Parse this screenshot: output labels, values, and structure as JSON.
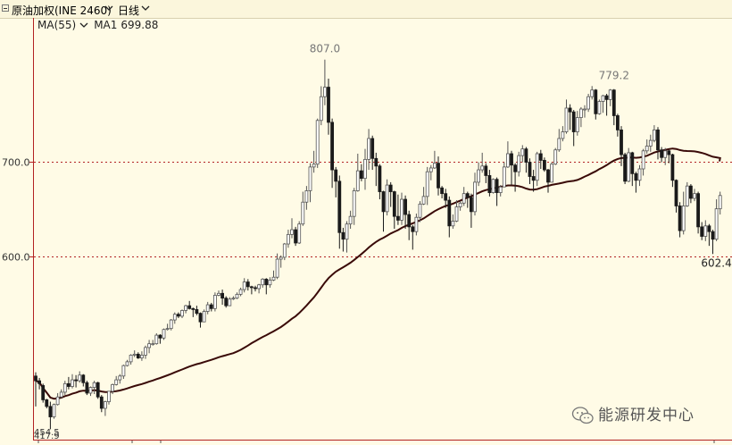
{
  "header": {
    "instrument": "原油加权(INE 2460)",
    "period": "日线"
  },
  "indicator": {
    "selector": "MA(55)",
    "ma1_label": "MA1",
    "ma1_value": "699.88"
  },
  "watermark": "能源研发中心",
  "colors": {
    "background": "#fffbe6",
    "candle_up_border": "#555555",
    "candle_down": "#1a1a1a",
    "ma_line": "#3a0a08",
    "axis": "#b22222"
  },
  "chart_data": {
    "type": "candlestick",
    "ylim": [
      408,
      850
    ],
    "yticks": [
      600.0,
      700.0
    ],
    "ytick_labels": [
      "600.0",
      "700.0"
    ],
    "bottom_labels": [
      "454.5",
      "417.9"
    ],
    "annotations": [
      {
        "text": "807.0",
        "index": 79,
        "price": 807.0,
        "position": "above"
      },
      {
        "text": "779.2",
        "index": 158,
        "price": 779.2,
        "position": "above"
      },
      {
        "text": "602.4",
        "index": 186,
        "price": 602.4,
        "position": "below"
      }
    ],
    "ma_period": 55,
    "ma_last": 699.88,
    "candles": [
      [
        474.0,
        469.0,
        478.0,
        442.0
      ],
      [
        469.0,
        466.0,
        472.0,
        460.0
      ],
      [
        464.0,
        449.0,
        466.0,
        446.0
      ],
      [
        449.0,
        442.0,
        450.0,
        440.0
      ],
      [
        442.0,
        431.0,
        447.0,
        418.0
      ],
      [
        431.0,
        444.0,
        445.0,
        429.0
      ],
      [
        444.0,
        452.0,
        456.0,
        443.0
      ],
      [
        452.0,
        457.0,
        460.0,
        451.0
      ],
      [
        457.0,
        466.0,
        469.0,
        454.0
      ],
      [
        466.0,
        463.0,
        473.0,
        460.0
      ],
      [
        463.0,
        470.0,
        476.0,
        461.0
      ],
      [
        470.0,
        469.0,
        475.0,
        462.0
      ],
      [
        469.0,
        475.0,
        479.0,
        467.0
      ],
      [
        475.0,
        467.0,
        476.0,
        463.0
      ],
      [
        467.0,
        456.0,
        469.0,
        454.0
      ],
      [
        456.0,
        462.0,
        463.0,
        453.0
      ],
      [
        462.0,
        467.0,
        469.0,
        455.0
      ],
      [
        467.0,
        452.0,
        468.0,
        450.0
      ],
      [
        452.0,
        440.0,
        454.0,
        436.0
      ],
      [
        440.0,
        447.0,
        448.0,
        432.0
      ],
      [
        447.0,
        458.0,
        458.0,
        444.0
      ],
      [
        458.0,
        465.0,
        466.0,
        455.0
      ],
      [
        465.0,
        470.0,
        474.0,
        464.0
      ],
      [
        470.0,
        474.0,
        476.0,
        466.0
      ],
      [
        474.0,
        485.0,
        486.0,
        471.0
      ],
      [
        485.0,
        489.0,
        491.0,
        484.0
      ],
      [
        489.0,
        496.0,
        497.0,
        486.0
      ],
      [
        496.0,
        497.0,
        501.0,
        494.0
      ],
      [
        497.0,
        493.0,
        499.0,
        492.0
      ],
      [
        493.0,
        496.0,
        500.0,
        490.0
      ],
      [
        496.0,
        504.0,
        506.0,
        492.0
      ],
      [
        504.0,
        508.0,
        512.0,
        498.0
      ],
      [
        508.0,
        508.0,
        512.0,
        506.0
      ],
      [
        508.0,
        517.0,
        519.0,
        507.0
      ],
      [
        517.0,
        514.0,
        518.0,
        508.0
      ],
      [
        514.0,
        523.0,
        524.0,
        512.0
      ],
      [
        523.0,
        524.0,
        529.0,
        522.0
      ],
      [
        524.0,
        533.0,
        534.0,
        522.0
      ],
      [
        533.0,
        539.0,
        541.0,
        529.0
      ],
      [
        539.0,
        537.0,
        541.0,
        535.0
      ],
      [
        537.0,
        543.0,
        544.0,
        535.0
      ],
      [
        543.0,
        548.0,
        549.0,
        540.0
      ],
      [
        548.0,
        545.0,
        553.0,
        544.0
      ],
      [
        545.0,
        544.0,
        546.0,
        536.0
      ],
      [
        544.0,
        540.0,
        548.0,
        538.0
      ],
      [
        540.0,
        531.0,
        541.0,
        525.0
      ],
      [
        531.0,
        542.0,
        544.0,
        531.0
      ],
      [
        542.0,
        549.0,
        552.0,
        539.0
      ],
      [
        549.0,
        545.0,
        551.0,
        542.0
      ],
      [
        545.0,
        559.0,
        562.0,
        542.0
      ],
      [
        559.0,
        561.0,
        564.0,
        558.0
      ],
      [
        561.0,
        556.0,
        565.0,
        549.0
      ],
      [
        556.0,
        548.0,
        558.0,
        546.0
      ],
      [
        548.0,
        555.0,
        557.0,
        548.0
      ],
      [
        555.0,
        556.0,
        558.0,
        554.0
      ],
      [
        556.0,
        560.0,
        562.0,
        555.0
      ],
      [
        560.0,
        565.0,
        567.0,
        558.0
      ],
      [
        565.0,
        573.0,
        577.0,
        562.0
      ],
      [
        573.0,
        568.0,
        576.0,
        564.0
      ],
      [
        568.0,
        567.0,
        569.0,
        560.0
      ],
      [
        567.0,
        566.0,
        569.0,
        563.0
      ],
      [
        566.0,
        570.0,
        571.0,
        561.0
      ],
      [
        570.0,
        576.0,
        577.0,
        567.0
      ],
      [
        576.0,
        570.0,
        577.0,
        560.0
      ],
      [
        570.0,
        575.0,
        578.0,
        567.0
      ],
      [
        575.0,
        578.0,
        585.0,
        574.0
      ],
      [
        578.0,
        597.0,
        603.0,
        576.0
      ],
      [
        597.0,
        599.0,
        601.0,
        588.0
      ],
      [
        599.0,
        613.0,
        614.0,
        596.0
      ],
      [
        613.0,
        623.0,
        628.0,
        609.0
      ],
      [
        623.0,
        628.0,
        640.0,
        619.0
      ],
      [
        628.0,
        614.0,
        631.0,
        611.0
      ],
      [
        614.0,
        634.0,
        637.0,
        613.0
      ],
      [
        634.0,
        657.0,
        668.0,
        632.0
      ],
      [
        657.0,
        669.0,
        674.0,
        649.0
      ],
      [
        669.0,
        694.0,
        698.0,
        657.0
      ],
      [
        694.0,
        697.0,
        711.0,
        688.0
      ],
      [
        697.0,
        743.0,
        745.0,
        693.0
      ],
      [
        743.0,
        768.0,
        779.0,
        738.0
      ],
      [
        768.0,
        778.0,
        807.0,
        759.0
      ],
      [
        778.0,
        741.0,
        787.0,
        728.0
      ],
      [
        741.0,
        691.0,
        745.0,
        672.0
      ],
      [
        691.0,
        679.0,
        694.0,
        662.0
      ],
      [
        679.0,
        625.0,
        685.0,
        608.0
      ],
      [
        625.0,
        618.0,
        630.0,
        605.0
      ],
      [
        618.0,
        634.0,
        637.0,
        604.0
      ],
      [
        634.0,
        642.0,
        648.0,
        629.0
      ],
      [
        642.0,
        669.0,
        672.0,
        633.0
      ],
      [
        669.0,
        690.0,
        708.0,
        668.0
      ],
      [
        690.0,
        682.0,
        697.0,
        679.0
      ],
      [
        682.0,
        702.0,
        713.0,
        670.0
      ],
      [
        702.0,
        724.0,
        734.0,
        691.0
      ],
      [
        724.0,
        703.0,
        727.0,
        691.0
      ],
      [
        703.0,
        695.0,
        709.0,
        674.0
      ],
      [
        695.0,
        668.0,
        697.0,
        660.0
      ],
      [
        668.0,
        647.0,
        669.0,
        626.0
      ],
      [
        647.0,
        675.0,
        681.0,
        643.0
      ],
      [
        675.0,
        668.0,
        678.0,
        652.0
      ],
      [
        668.0,
        642.0,
        669.0,
        629.0
      ],
      [
        642.0,
        638.0,
        665.0,
        633.0
      ],
      [
        638.0,
        660.0,
        667.0,
        633.0
      ],
      [
        660.0,
        644.0,
        664.0,
        629.0
      ],
      [
        644.0,
        631.0,
        648.0,
        617.0
      ],
      [
        631.0,
        626.0,
        633.0,
        607.0
      ],
      [
        626.0,
        641.0,
        645.0,
        622.0
      ],
      [
        641.0,
        655.0,
        658.0,
        636.0
      ],
      [
        655.0,
        663.0,
        673.0,
        654.0
      ],
      [
        663.0,
        689.0,
        694.0,
        654.0
      ],
      [
        689.0,
        693.0,
        696.0,
        680.0
      ],
      [
        693.0,
        698.0,
        711.0,
        692.0
      ],
      [
        698.0,
        672.0,
        705.0,
        664.0
      ],
      [
        672.0,
        666.0,
        674.0,
        661.0
      ],
      [
        666.0,
        659.0,
        671.0,
        651.0
      ],
      [
        659.0,
        632.0,
        663.0,
        620.0
      ],
      [
        632.0,
        637.0,
        644.0,
        629.0
      ],
      [
        637.0,
        652.0,
        659.0,
        636.0
      ],
      [
        652.0,
        656.0,
        658.0,
        648.0
      ],
      [
        656.0,
        666.0,
        673.0,
        653.0
      ],
      [
        666.0,
        662.0,
        668.0,
        651.0
      ],
      [
        662.0,
        647.0,
        666.0,
        630.0
      ],
      [
        647.0,
        678.0,
        688.0,
        643.0
      ],
      [
        678.0,
        691.0,
        699.0,
        674.0
      ],
      [
        691.0,
        695.0,
        709.0,
        688.0
      ],
      [
        695.0,
        685.0,
        698.0,
        677.0
      ],
      [
        685.0,
        667.0,
        691.0,
        663.0
      ],
      [
        667.0,
        681.0,
        682.0,
        666.0
      ],
      [
        681.0,
        667.0,
        683.0,
        653.0
      ],
      [
        667.0,
        673.0,
        675.0,
        663.0
      ],
      [
        673.0,
        694.0,
        699.0,
        673.0
      ],
      [
        694.0,
        708.0,
        721.0,
        693.0
      ],
      [
        708.0,
        696.0,
        711.0,
        675.0
      ],
      [
        696.0,
        689.0,
        698.0,
        668.0
      ],
      [
        689.0,
        706.0,
        710.0,
        684.0
      ],
      [
        706.0,
        713.0,
        717.0,
        699.0
      ],
      [
        713.0,
        699.0,
        715.0,
        688.0
      ],
      [
        699.0,
        684.0,
        703.0,
        676.0
      ],
      [
        684.0,
        680.0,
        691.0,
        668.0
      ],
      [
        680.0,
        708.0,
        710.0,
        674.0
      ],
      [
        708.0,
        701.0,
        712.0,
        692.0
      ],
      [
        701.0,
        691.0,
        704.0,
        689.0
      ],
      [
        691.0,
        678.0,
        692.0,
        667.0
      ],
      [
        678.0,
        697.0,
        699.0,
        678.0
      ],
      [
        697.0,
        712.0,
        714.0,
        696.0
      ],
      [
        712.0,
        724.0,
        734.0,
        710.0
      ],
      [
        724.0,
        731.0,
        737.0,
        721.0
      ],
      [
        731.0,
        756.0,
        765.0,
        729.0
      ],
      [
        756.0,
        752.0,
        760.0,
        733.0
      ],
      [
        752.0,
        731.0,
        754.0,
        716.0
      ],
      [
        731.0,
        746.0,
        753.0,
        727.0
      ],
      [
        746.0,
        755.0,
        757.0,
        736.0
      ],
      [
        755.0,
        755.0,
        759.0,
        746.0
      ],
      [
        755.0,
        768.0,
        771.0,
        752.0
      ],
      [
        768.0,
        775.0,
        779.2,
        765.0
      ],
      [
        775.0,
        750.0,
        776.0,
        744.0
      ],
      [
        750.0,
        763.0,
        765.0,
        749.0
      ],
      [
        763.0,
        769.0,
        770.0,
        751.0
      ],
      [
        769.0,
        765.0,
        771.0,
        748.0
      ],
      [
        765.0,
        775.0,
        776.0,
        758.0
      ],
      [
        775.0,
        748.0,
        776.0,
        738.0
      ],
      [
        748.0,
        733.0,
        750.0,
        726.0
      ],
      [
        733.0,
        707.0,
        737.0,
        695.0
      ],
      [
        707.0,
        679.0,
        709.0,
        676.0
      ],
      [
        679.0,
        709.0,
        714.0,
        678.0
      ],
      [
        709.0,
        687.0,
        710.0,
        674.0
      ],
      [
        687.0,
        680.0,
        689.0,
        667.0
      ],
      [
        680.0,
        692.0,
        696.0,
        674.0
      ],
      [
        692.0,
        711.0,
        713.0,
        685.0
      ],
      [
        711.0,
        716.0,
        723.0,
        708.0
      ],
      [
        716.0,
        722.0,
        728.0,
        710.0
      ],
      [
        722.0,
        733.0,
        738.0,
        720.0
      ],
      [
        733.0,
        712.0,
        736.0,
        702.0
      ],
      [
        712.0,
        704.0,
        715.0,
        699.0
      ],
      [
        704.0,
        711.0,
        714.0,
        696.0
      ],
      [
        711.0,
        707.0,
        712.0,
        698.0
      ],
      [
        707.0,
        680.0,
        708.0,
        673.0
      ],
      [
        680.0,
        653.0,
        681.0,
        646.0
      ],
      [
        653.0,
        627.0,
        657.0,
        620.0
      ],
      [
        627.0,
        653.0,
        668.0,
        623.0
      ],
      [
        653.0,
        674.0,
        678.0,
        652.0
      ],
      [
        674.0,
        661.0,
        676.0,
        656.0
      ],
      [
        661.0,
        666.0,
        671.0,
        658.0
      ],
      [
        666.0,
        631.0,
        668.0,
        624.0
      ],
      [
        631.0,
        621.0,
        636.0,
        617.0
      ],
      [
        621.0,
        632.0,
        638.0,
        616.0
      ],
      [
        632.0,
        626.0,
        634.0,
        611.0
      ],
      [
        626.0,
        618.0,
        628.0,
        602.4
      ],
      [
        618.0,
        650.0,
        660.0,
        616.0
      ],
      [
        650.0,
        664.0,
        668.0,
        644.0
      ]
    ]
  }
}
